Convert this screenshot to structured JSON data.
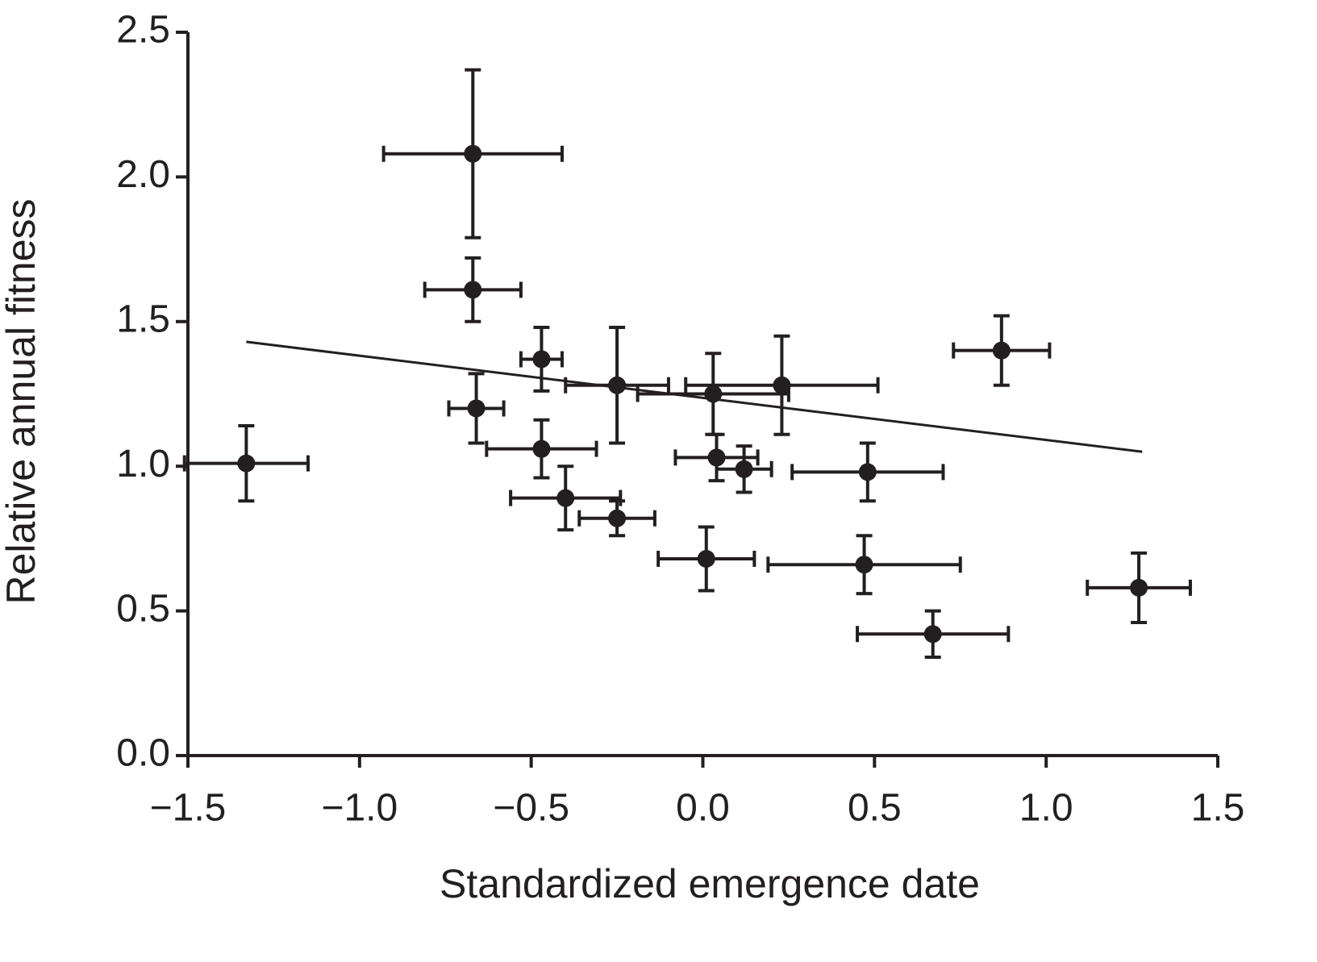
{
  "chart_data": {
    "type": "scatter",
    "x_label": "Standardized emergence date",
    "y_label": "Relative annual fitness",
    "color": "#231f20",
    "x": [
      -1.33,
      -0.67,
      -0.67,
      -0.47,
      -0.66,
      -0.47,
      -0.4,
      -0.25,
      -0.25,
      0.03,
      0.23,
      0.04,
      0.12,
      0.01,
      0.48,
      0.47,
      0.67,
      0.87,
      1.27
    ],
    "y": [
      1.01,
      2.08,
      1.61,
      1.37,
      1.2,
      1.06,
      0.89,
      0.82,
      1.28,
      1.25,
      1.28,
      1.03,
      0.99,
      0.68,
      0.98,
      0.66,
      0.42,
      1.4,
      0.58
    ],
    "xerr": [
      0.18,
      0.26,
      0.14,
      0.06,
      0.08,
      0.16,
      0.16,
      0.11,
      0.15,
      0.22,
      0.28,
      0.12,
      0.08,
      0.14,
      0.22,
      0.28,
      0.22,
      0.14,
      0.15
    ],
    "yerr": [
      0.13,
      0.29,
      0.11,
      0.11,
      0.12,
      0.1,
      0.11,
      0.06,
      0.2,
      0.14,
      0.17,
      0.08,
      0.08,
      0.11,
      0.1,
      0.1,
      0.08,
      0.12,
      0.12
    ],
    "fit_line": {
      "x": [
        -1.33,
        1.28
      ],
      "y": [
        1.43,
        1.05
      ]
    },
    "xlim": [
      -1.5,
      1.5
    ],
    "ylim": [
      0,
      2.5
    ],
    "xticks": [
      {
        "value": -1.5,
        "label": "−1.5"
      },
      {
        "value": -1.0,
        "label": "−1.0"
      },
      {
        "value": -0.5,
        "label": "−0.5"
      },
      {
        "value": 0,
        "label": "0.0"
      },
      0.5,
      {
        "value": 1.0,
        "label": "1.0"
      },
      1.5
    ],
    "yticks": [
      {
        "value": 0,
        "label": "0.0"
      },
      0.5,
      {
        "value": 1.0,
        "label": "1.0"
      },
      1.5,
      {
        "value": 2.0,
        "label": "2.0"
      },
      2.5
    ],
    "grid": false
  }
}
